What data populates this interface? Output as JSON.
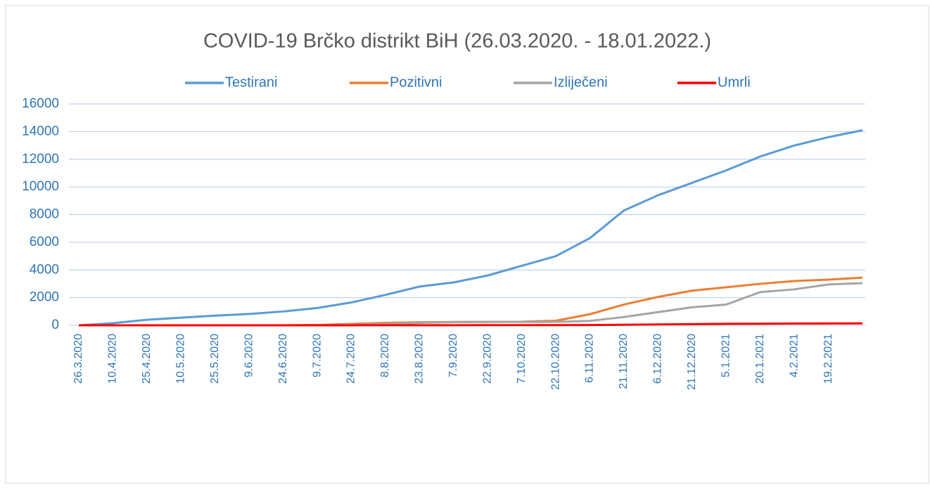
{
  "chart_data": {
    "type": "line",
    "title": "COVID-19 Brčko distrikt BiH (26.03.2020. - 18.01.2022.)",
    "categories": [
      "26.3.2020",
      "10.4.2020",
      "25.4.2020",
      "10.5.2020",
      "25.5.2020",
      "9.6.2020",
      "24.6.2020",
      "9.7.2020",
      "24.7.2020",
      "8.8.2020",
      "23.8.2020",
      "7.9.2020",
      "22.9.2020",
      "7.10.2020",
      "22.10.2020",
      "6.11.2020",
      "21.11.2020",
      "6.12.2020",
      "21.12.2020",
      "5.1.2021",
      "20.1.2021",
      "4.2.2021",
      "19.2.2021",
      null
    ],
    "series": [
      {
        "name": "Testirani",
        "color": "#5b9bd5",
        "values": [
          0,
          150,
          400,
          550,
          700,
          820,
          1000,
          1250,
          1650,
          2200,
          2800,
          3100,
          3600,
          4300,
          5000,
          6300,
          8300,
          9400,
          10300,
          11200,
          12200,
          13000,
          13600,
          14100
        ]
      },
      {
        "name": "Pozitivni",
        "color": "#ed7d31",
        "values": [
          0,
          0,
          0,
          0,
          0,
          0,
          0,
          30,
          100,
          180,
          220,
          240,
          250,
          260,
          330,
          800,
          1500,
          2050,
          2500,
          2750,
          3000,
          3200,
          3300,
          3450
        ]
      },
      {
        "name": "Izliječeni",
        "color": "#a5a5a5",
        "values": [
          0,
          0,
          0,
          0,
          0,
          0,
          0,
          10,
          50,
          100,
          180,
          220,
          240,
          240,
          250,
          320,
          600,
          950,
          1300,
          1500,
          2400,
          2600,
          2950,
          3050
        ]
      },
      {
        "name": "Umrli",
        "color": "#ff0000",
        "values": [
          0,
          0,
          0,
          0,
          0,
          0,
          0,
          2,
          3,
          5,
          7,
          9,
          10,
          11,
          13,
          20,
          40,
          65,
          85,
          105,
          115,
          125,
          135,
          140
        ]
      }
    ],
    "ylim": [
      0,
      16000
    ],
    "yticks": [
      0,
      2000,
      4000,
      6000,
      8000,
      10000,
      12000,
      14000,
      16000
    ],
    "grid": true,
    "legend": "top"
  }
}
